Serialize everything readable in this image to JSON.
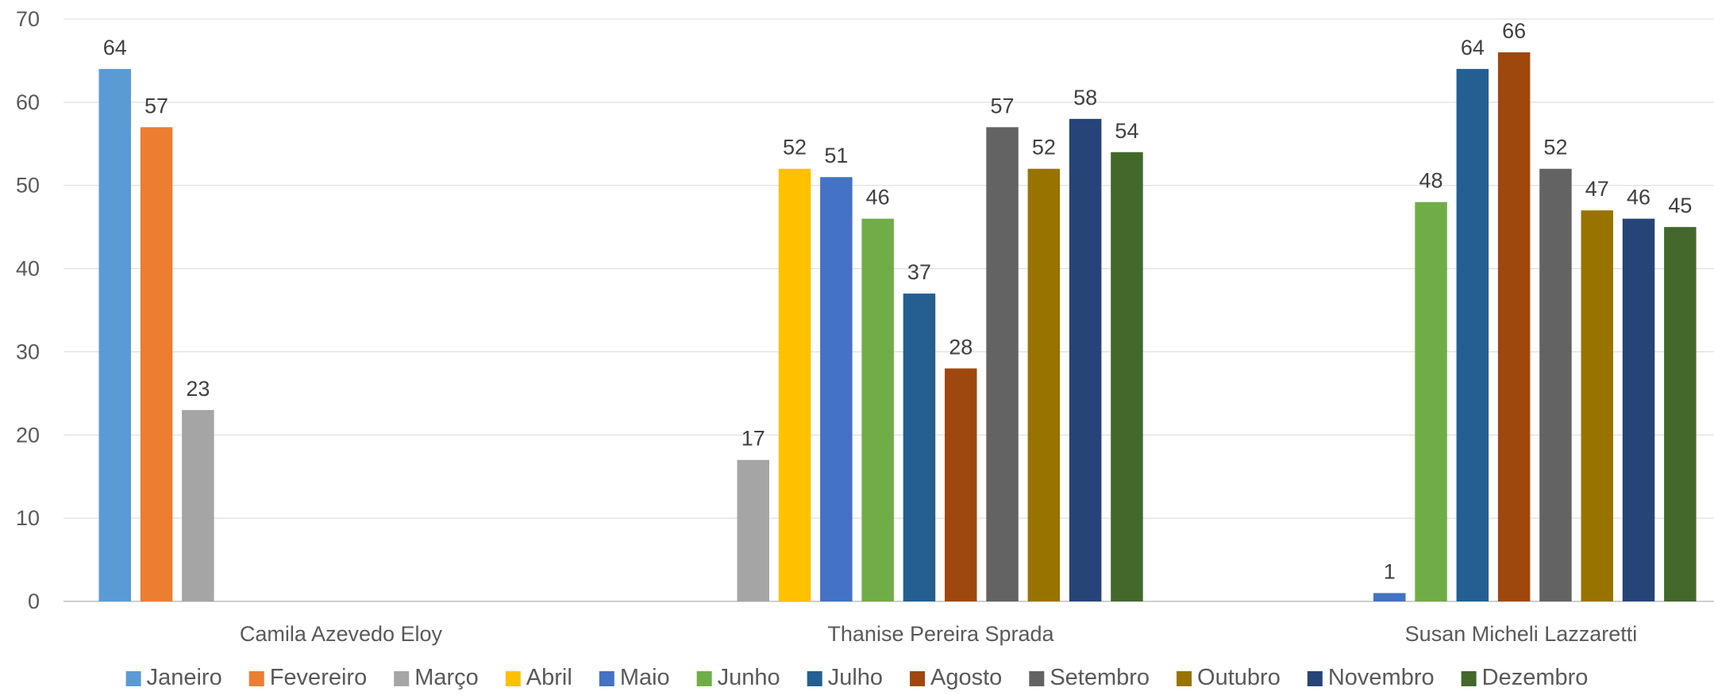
{
  "chart_data": {
    "type": "bar",
    "categories": [
      "Camila Azevedo Eloy",
      "Thanise Pereira Sprada",
      "Susan Micheli Lazzaretti"
    ],
    "series": [
      {
        "name": "Janeiro",
        "color": "#5B9BD5",
        "values": [
          64,
          null,
          null
        ]
      },
      {
        "name": "Fevereiro",
        "color": "#ED7D31",
        "values": [
          57,
          null,
          null
        ]
      },
      {
        "name": "Março",
        "color": "#A5A5A5",
        "values": [
          23,
          17,
          null
        ]
      },
      {
        "name": "Abril",
        "color": "#FFC000",
        "values": [
          null,
          52,
          null
        ]
      },
      {
        "name": "Maio",
        "color": "#4472C4",
        "values": [
          null,
          51,
          1
        ]
      },
      {
        "name": "Junho",
        "color": "#70AD47",
        "values": [
          null,
          46,
          48
        ]
      },
      {
        "name": "Julho",
        "color": "#255E91",
        "values": [
          null,
          37,
          64
        ]
      },
      {
        "name": "Agosto",
        "color": "#9E480E",
        "values": [
          null,
          28,
          66
        ]
      },
      {
        "name": "Setembro",
        "color": "#636363",
        "values": [
          null,
          57,
          52
        ]
      },
      {
        "name": "Outubro",
        "color": "#997300",
        "values": [
          null,
          52,
          47
        ]
      },
      {
        "name": "Novembro",
        "color": "#264478",
        "values": [
          null,
          58,
          46
        ]
      },
      {
        "name": "Dezembro",
        "color": "#43682B",
        "values": [
          null,
          54,
          45
        ]
      }
    ],
    "ylim": [
      0,
      70
    ],
    "yticks": [
      0,
      10,
      20,
      30,
      40,
      50,
      60,
      70
    ],
    "grid": true,
    "legend": "bottom",
    "data_labels": true
  }
}
